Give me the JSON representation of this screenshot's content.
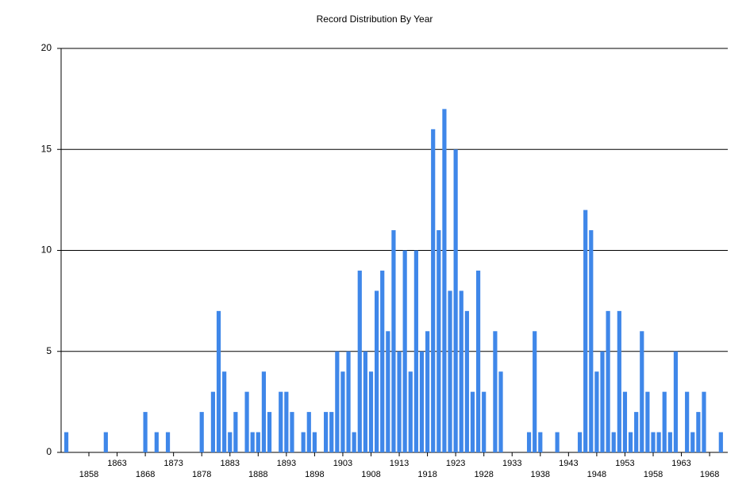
{
  "chart_data": {
    "type": "bar",
    "title": "Record Distribution By Year",
    "categories": [
      null,
      null,
      null,
      null,
      "1858",
      null,
      null,
      null,
      null,
      "1863",
      null,
      null,
      null,
      null,
      "1868",
      null,
      null,
      null,
      null,
      "1873",
      null,
      null,
      null,
      null,
      "1878",
      null,
      null,
      null,
      null,
      "1883",
      null,
      null,
      null,
      null,
      "1888",
      null,
      null,
      null,
      null,
      "1893",
      null,
      null,
      null,
      null,
      "1898",
      null,
      null,
      null,
      null,
      "1903",
      null,
      null,
      null,
      null,
      "1908",
      null,
      null,
      null,
      null,
      "1913",
      null,
      null,
      null,
      null,
      "1918",
      null,
      null,
      null,
      null,
      "1923",
      null,
      null,
      null,
      null,
      "1928",
      null,
      null,
      null,
      null,
      "1933",
      null,
      null,
      null,
      null,
      "1938",
      null,
      null,
      null,
      null,
      "1943",
      null,
      null,
      null,
      null,
      "1948",
      null,
      null,
      null,
      null,
      "1953",
      null,
      null,
      null,
      null,
      "1958",
      null,
      null,
      null,
      null,
      "1963",
      null,
      null,
      null,
      null,
      "1968",
      null,
      null
    ],
    "values": [
      1,
      0,
      0,
      0,
      0,
      0,
      0,
      1,
      0,
      0,
      0,
      0,
      0,
      0,
      2,
      0,
      1,
      0,
      1,
      0,
      0,
      0,
      0,
      0,
      2,
      0,
      3,
      7,
      4,
      1,
      2,
      0,
      3,
      1,
      1,
      4,
      2,
      0,
      3,
      3,
      2,
      0,
      1,
      2,
      1,
      0,
      2,
      2,
      5,
      4,
      5,
      1,
      9,
      5,
      4,
      8,
      9,
      6,
      11,
      5,
      10,
      4,
      10,
      5,
      6,
      16,
      11,
      17,
      8,
      15,
      8,
      7,
      3,
      9,
      3,
      0,
      6,
      4,
      0,
      0,
      0,
      0,
      1,
      6,
      1,
      0,
      0,
      1,
      0,
      0,
      0,
      1,
      12,
      11,
      4,
      5,
      7,
      1,
      7,
      3,
      1,
      2,
      6,
      3,
      1,
      1,
      3,
      1,
      5,
      0,
      3,
      1,
      2,
      3,
      0,
      0,
      1
    ],
    "color": "#3f87e9",
    "ylim": [
      0,
      20
    ],
    "yticks": [
      0,
      5,
      10,
      15,
      20
    ],
    "grid": true
  }
}
